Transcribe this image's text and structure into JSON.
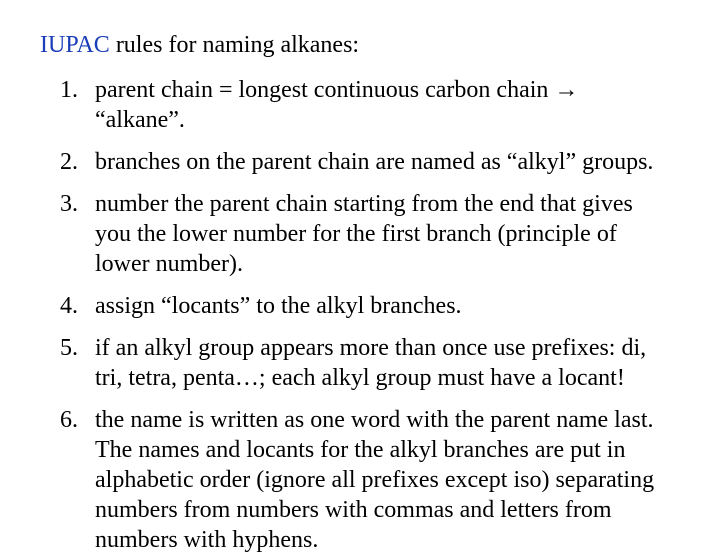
{
  "title": {
    "highlight": "IUPAC",
    "rest": " rules for naming alkanes:",
    "highlight_color": "#1a3db8",
    "fontsize": 24
  },
  "list": {
    "fontsize": 24,
    "items": [
      "parent chain = longest continuous carbon chain → “alkane”.",
      "branches on the parent chain are named as “alkyl” groups.",
      "number the parent chain starting from the end that gives you the lower number for the first branch (principle of lower number).",
      "assign “locants” to the alkyl branches.",
      "if an alkyl group appears more than once use prefixes: di, tri, tetra, penta…; each alkyl group must have a locant!",
      "the name is written as one word with the parent name last.  The names and locants for the alkyl branches are put in alphabetic order (ignore all prefixes except iso) separating numbers from numbers with commas and letters from numbers with hyphens."
    ]
  },
  "background_color": "#ffffff",
  "text_color": "#000000"
}
